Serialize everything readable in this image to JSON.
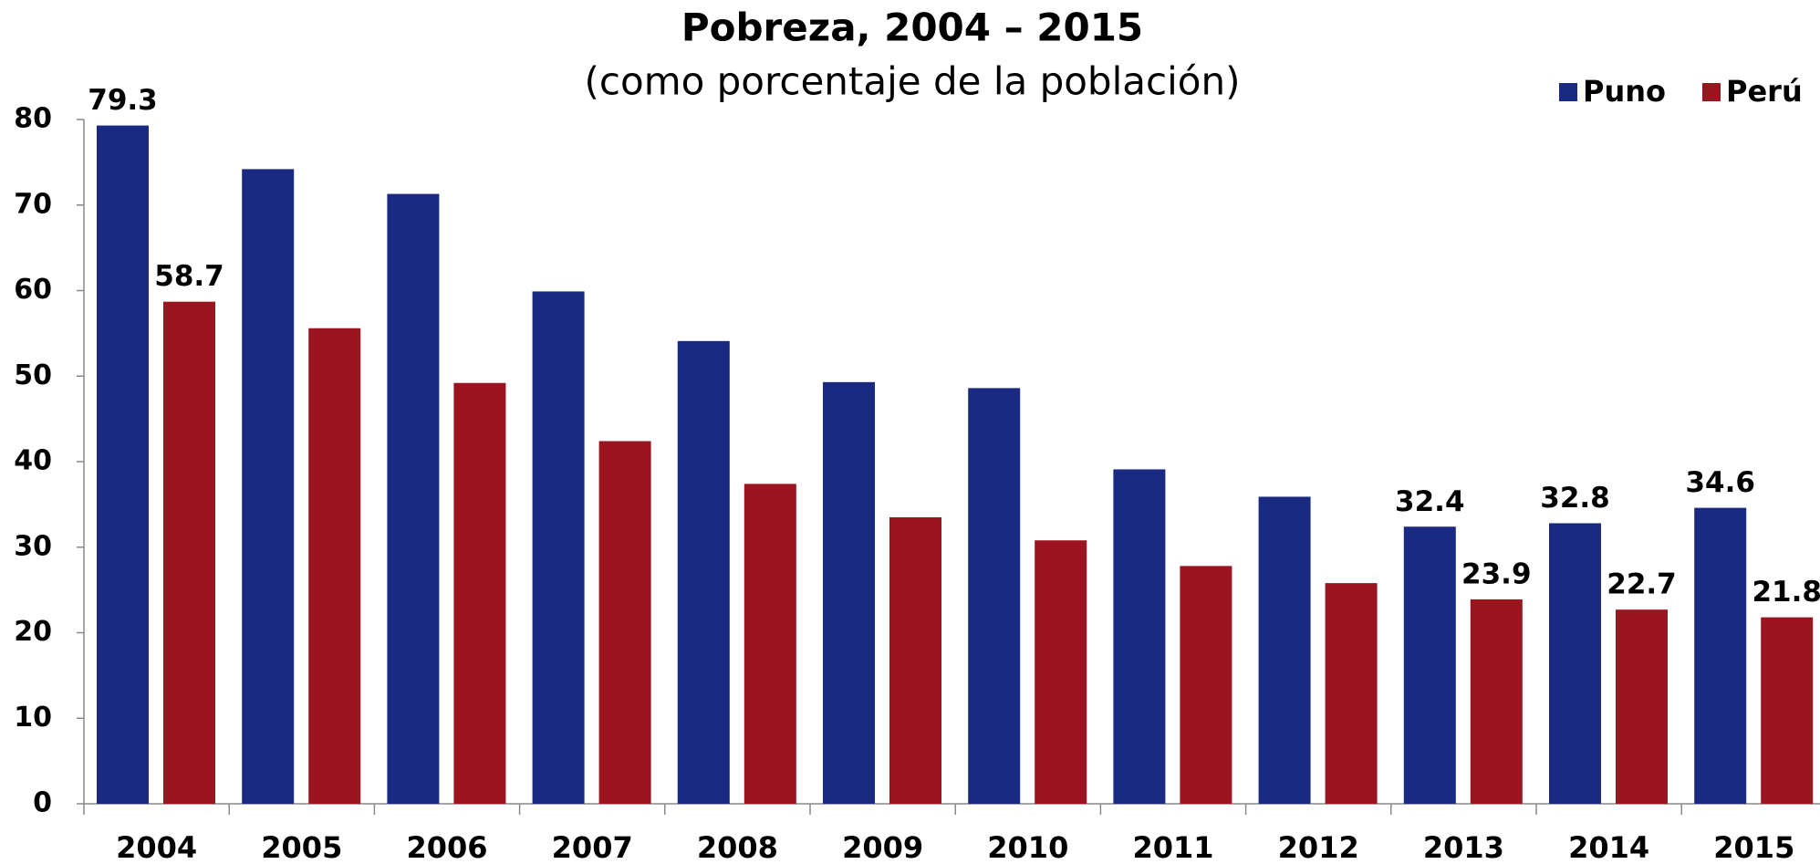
{
  "chart_data": {
    "type": "bar",
    "title": "Pobreza, 2004 – 2015",
    "subtitle": "(como porcentaje de la población)",
    "categories": [
      "2004",
      "2005",
      "2006",
      "2007",
      "2008",
      "2009",
      "2010",
      "2011",
      "2012",
      "2013",
      "2014",
      "2015"
    ],
    "series": [
      {
        "name": "Puno",
        "color": "#1a2a82",
        "values": [
          79.3,
          74.2,
          71.3,
          59.9,
          54.1,
          49.3,
          48.6,
          39.1,
          35.9,
          32.4,
          32.8,
          34.6
        ],
        "value_labels": [
          "79.3",
          null,
          null,
          null,
          null,
          null,
          null,
          null,
          null,
          "32.4",
          "32.8",
          "34.6"
        ]
      },
      {
        "name": "Perú",
        "color": "#9b1520",
        "values": [
          58.7,
          55.6,
          49.2,
          42.4,
          37.4,
          33.5,
          30.8,
          27.8,
          25.8,
          23.9,
          22.7,
          21.8
        ],
        "value_labels": [
          "58.7",
          null,
          null,
          null,
          null,
          null,
          null,
          null,
          null,
          "23.9",
          "22.7",
          "21.8"
        ]
      }
    ],
    "ylim": [
      0,
      80
    ],
    "yticks": [
      0,
      10,
      20,
      30,
      40,
      50,
      60,
      70,
      80
    ],
    "legend": "top-right",
    "grid": false
  }
}
